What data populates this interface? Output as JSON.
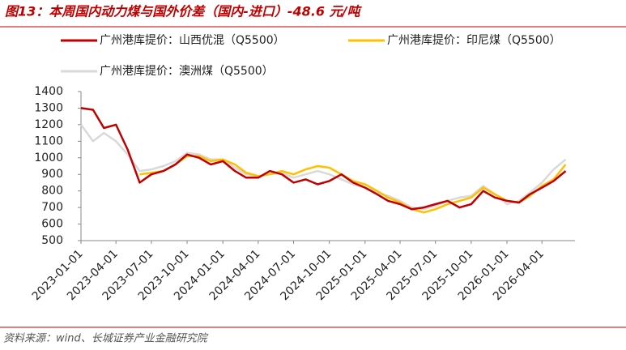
{
  "chart_data": {
    "type": "line",
    "title": "图13：本周国内动力煤与国外价差（国内-进口）-48.6 元/吨",
    "source": "资料来源：wind、长城证券产业金融研究院",
    "x": [
      "2023-01-01",
      "2023-02-01",
      "2023-03-01",
      "2023-04-01",
      "2023-05-01",
      "2023-06-01",
      "2023-07-01",
      "2023-08-01",
      "2023-09-01",
      "2023-10-01",
      "2023-11-01",
      "2023-12-01",
      "2024-01-01",
      "2024-02-01",
      "2024-03-01",
      "2024-04-01",
      "2024-05-01",
      "2024-06-01",
      "2024-07-01",
      "2024-08-01",
      "2024-09-01",
      "2024-10-01",
      "2024-11-01",
      "2024-12-01",
      "2025-01-01",
      "2025-02-01",
      "2025-03-01",
      "2025-04-01",
      "2025-05-01",
      "2025-06-01",
      "2025-07-01",
      "2025-08-01",
      "2025-09-01",
      "2025-10-01",
      "2025-11-01",
      "2025-12-01",
      "2026-01-01",
      "2026-02-01",
      "2026-03-01",
      "2026-04-01",
      "2026-05-01",
      "2026-06-01"
    ],
    "series": [
      {
        "name": "广州港库提价：山西优混（Q5500）",
        "color": "#c00000",
        "values": [
          1300,
          1290,
          1180,
          1200,
          1050,
          850,
          900,
          920,
          960,
          1020,
          1000,
          960,
          980,
          920,
          880,
          880,
          920,
          900,
          850,
          870,
          840,
          860,
          900,
          850,
          820,
          780,
          740,
          720,
          690,
          700,
          720,
          740,
          700,
          720,
          800,
          760,
          740,
          730,
          780,
          820,
          860,
          920
        ]
      },
      {
        "name": "广州港库提价：印尼煤（Q5500）",
        "color": "#ffc000",
        "values": [
          null,
          null,
          null,
          null,
          null,
          900,
          910,
          920,
          960,
          1010,
          1010,
          980,
          990,
          960,
          910,
          890,
          900,
          920,
          900,
          930,
          950,
          940,
          900,
          860,
          840,
          800,
          760,
          730,
          690,
          670,
          690,
          720,
          740,
          760,
          820,
          780,
          740,
          730,
          770,
          830,
          870,
          960
        ]
      },
      {
        "name": "广州港库提价：澳洲煤（Q5500）",
        "color": "#d9d9d9",
        "values": [
          1200,
          1100,
          1150,
          1100,
          1020,
          920,
          930,
          950,
          980,
          1030,
          1020,
          990,
          990,
          940,
          900,
          890,
          900,
          910,
          880,
          900,
          920,
          900,
          870,
          840,
          820,
          790,
          770,
          740,
          700,
          690,
          710,
          740,
          760,
          770,
          830,
          780,
          720,
          740,
          790,
          850,
          930,
          990
        ]
      }
    ],
    "xlim": [
      "2023-01-01",
      "2026-06-25"
    ],
    "xticks": [
      "2023-01-01",
      "2023-04-01",
      "2023-07-01",
      "2023-10-01",
      "2024-01-01",
      "2024-04-01",
      "2024-07-01",
      "2024-10-01",
      "2025-01-01",
      "2025-04-01",
      "2025-07-01",
      "2025-10-01",
      "2026-01-01",
      "2026-04-01"
    ],
    "ylim": [
      500,
      1400
    ],
    "yticks": [
      500,
      600,
      700,
      800,
      900,
      1000,
      1100,
      1200,
      1300,
      1400
    ]
  }
}
